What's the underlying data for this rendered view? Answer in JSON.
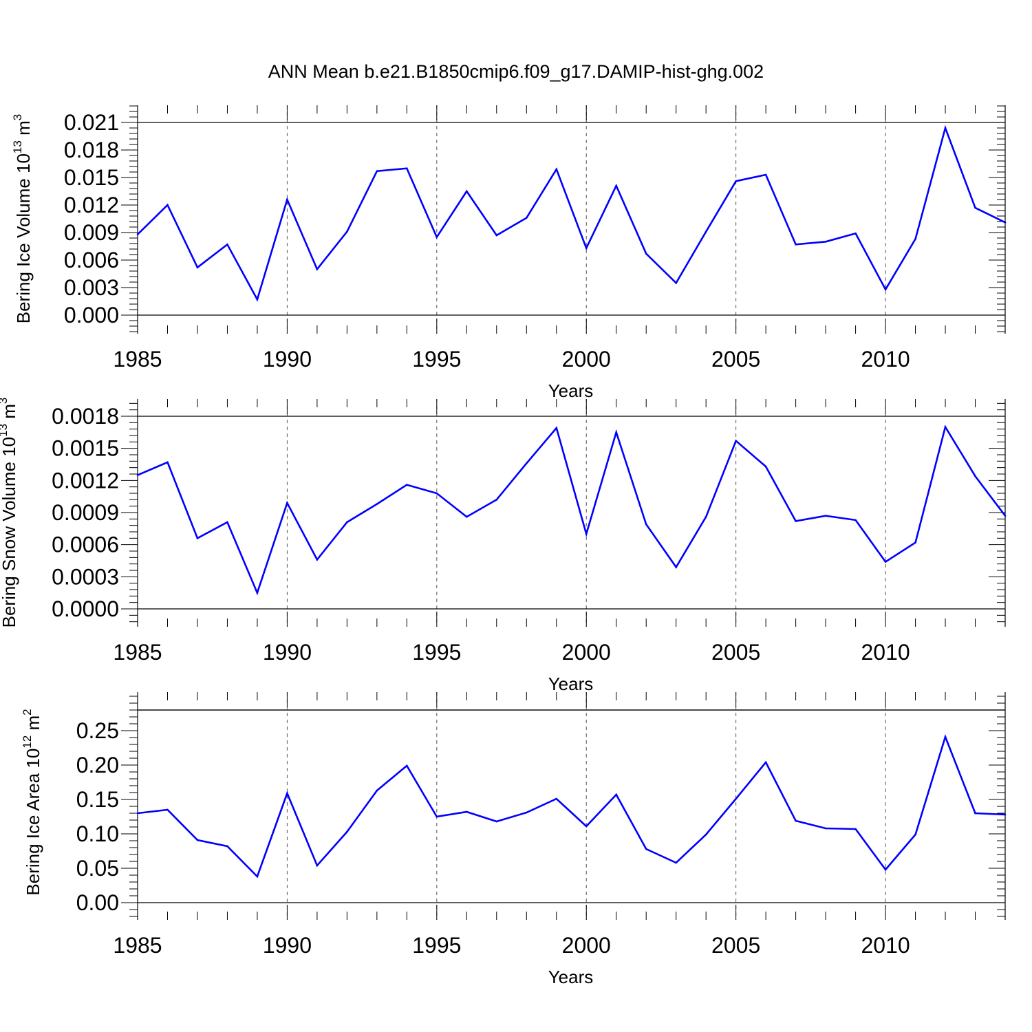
{
  "title": "ANN Mean b.e21.B1850cmip6.f09_g17.DAMIP-hist-ghg.002",
  "colors": {
    "line": "#0000ff",
    "axis": "#000000",
    "grid": "#555555"
  },
  "chart_data": [
    {
      "type": "line",
      "xlabel": "Years",
      "ylabel": {
        "text": "Bering Ice Volume 10",
        "exp": "13",
        "unit": " m",
        "unit_exp": "3"
      },
      "xlim": [
        1985,
        2014
      ],
      "ylim": [
        0.0,
        0.021
      ],
      "xticks": [
        1985,
        1990,
        1995,
        2000,
        2005,
        2010
      ],
      "xtick_labels": [
        "1985",
        "1990",
        "1995",
        "2000",
        "2005",
        "2010"
      ],
      "yticks": [
        0.0,
        0.003,
        0.006,
        0.009,
        0.012,
        0.015,
        0.018,
        0.021
      ],
      "ytick_labels": [
        "0.000",
        "0.003",
        "0.006",
        "0.009",
        "0.012",
        "0.015",
        "0.018",
        "0.021"
      ],
      "x": [
        1985,
        1986,
        1987,
        1988,
        1989,
        1990,
        1991,
        1992,
        1993,
        1994,
        1995,
        1996,
        1997,
        1998,
        1999,
        2000,
        2001,
        2002,
        2003,
        2004,
        2005,
        2006,
        2007,
        2008,
        2009,
        2010,
        2011,
        2012,
        2013,
        2014
      ],
      "y": [
        0.0088,
        0.012,
        0.0052,
        0.0077,
        0.0017,
        0.0126,
        0.005,
        0.0091,
        0.0157,
        0.016,
        0.0085,
        0.0135,
        0.0087,
        0.0106,
        0.0159,
        0.0073,
        0.0141,
        0.0067,
        0.0035,
        0.0091,
        0.0146,
        0.0153,
        0.0077,
        0.008,
        0.0089,
        0.0028,
        0.0083,
        0.0204,
        0.0117,
        0.0101
      ]
    },
    {
      "type": "line",
      "xlabel": "Years",
      "ylabel": {
        "text": "Bering Snow Volume 10",
        "exp": "13",
        "unit": " m",
        "unit_exp": "3"
      },
      "xlim": [
        1985,
        2014
      ],
      "ylim": [
        0.0,
        0.0018
      ],
      "xticks": [
        1985,
        1990,
        1995,
        2000,
        2005,
        2010
      ],
      "xtick_labels": [
        "1985",
        "1990",
        "1995",
        "2000",
        "2005",
        "2010"
      ],
      "yticks": [
        0.0,
        0.0003,
        0.0006,
        0.0009,
        0.0012,
        0.0015,
        0.0018
      ],
      "ytick_labels": [
        "0.0000",
        "0.0003",
        "0.0006",
        "0.0009",
        "0.0012",
        "0.0015",
        "0.0018"
      ],
      "x": [
        1985,
        1986,
        1987,
        1988,
        1989,
        1990,
        1991,
        1992,
        1993,
        1994,
        1995,
        1996,
        1997,
        1998,
        1999,
        2000,
        2001,
        2002,
        2003,
        2004,
        2005,
        2006,
        2007,
        2008,
        2009,
        2010,
        2011,
        2012,
        2013,
        2014
      ],
      "y": [
        0.00125,
        0.00137,
        0.00066,
        0.00081,
        0.00015,
        0.00099,
        0.00046,
        0.00081,
        0.00098,
        0.00116,
        0.00108,
        0.00086,
        0.00102,
        0.00136,
        0.00169,
        0.0007,
        0.00165,
        0.00079,
        0.00039,
        0.00086,
        0.00157,
        0.00133,
        0.00082,
        0.00087,
        0.00083,
        0.00044,
        0.00062,
        0.0017,
        0.00124,
        0.00087
      ]
    },
    {
      "type": "line",
      "xlabel": "Years",
      "ylabel": {
        "text": "Bering Ice Area 10",
        "exp": "12",
        "unit": " m",
        "unit_exp": "2"
      },
      "xlim": [
        1985,
        2014
      ],
      "ylim": [
        0.0,
        0.28
      ],
      "xticks": [
        1985,
        1990,
        1995,
        2000,
        2005,
        2010
      ],
      "xtick_labels": [
        "1985",
        "1990",
        "1995",
        "2000",
        "2005",
        "2010"
      ],
      "yticks": [
        0.0,
        0.05,
        0.1,
        0.15,
        0.2,
        0.25
      ],
      "ytick_labels": [
        "0.00",
        "0.05",
        "0.10",
        "0.15",
        "0.20",
        "0.25"
      ],
      "x": [
        1985,
        1986,
        1987,
        1988,
        1989,
        1990,
        1991,
        1992,
        1993,
        1994,
        1995,
        1996,
        1997,
        1998,
        1999,
        2000,
        2001,
        2002,
        2003,
        2004,
        2005,
        2006,
        2007,
        2008,
        2009,
        2010,
        2011,
        2012,
        2013,
        2014
      ],
      "y": [
        0.13,
        0.135,
        0.091,
        0.082,
        0.038,
        0.159,
        0.054,
        0.103,
        0.163,
        0.199,
        0.125,
        0.132,
        0.118,
        0.131,
        0.151,
        0.111,
        0.157,
        0.078,
        0.058,
        0.099,
        0.151,
        0.204,
        0.119,
        0.108,
        0.107,
        0.048,
        0.099,
        0.241,
        0.13,
        0.128
      ]
    }
  ]
}
